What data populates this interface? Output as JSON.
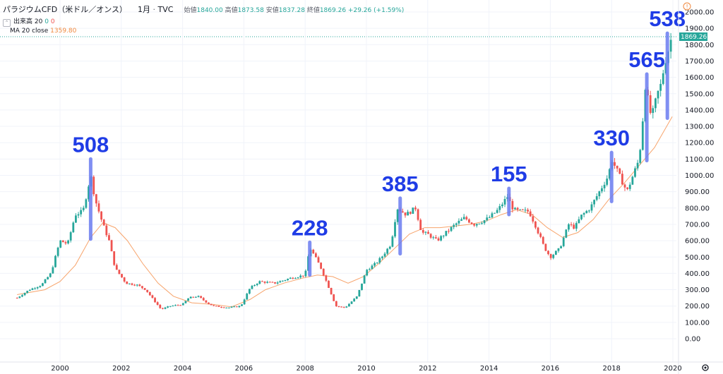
{
  "header": {
    "title": "パラジウムCFD（米ドル／オンス）",
    "interval": "1月",
    "source": "TVC",
    "open_label": "始値",
    "open_value": "1840.00",
    "high_label": "高値",
    "high_value": "1873.58",
    "low_label": "安値",
    "low_value": "1837.28",
    "close_label": "終値",
    "close_value": "1869.26",
    "change": "+29.26 (+1.59%)"
  },
  "volume_legend": {
    "label": "出来高 20",
    "value1": "0",
    "value2": "0"
  },
  "ma_legend": {
    "label": "MA 20 close",
    "value": "1359.80"
  },
  "price_badge": "1869.26",
  "alert_icon": "!",
  "settings_icon": "gear-icon",
  "colors": {
    "up": "#26a69a",
    "down": "#ef5350",
    "ma": "#f7a46c",
    "annotation": "#1f3ce6",
    "highlight": "#6b7cf0"
  },
  "chart_data": {
    "type": "candlestick",
    "title": "パラジウムCFD（米ドル／オンス）",
    "ylim": [
      0,
      2000
    ],
    "yticks": [
      "0.00",
      "100.00",
      "200.00",
      "300.00",
      "400.00",
      "500.00",
      "600.00",
      "700.00",
      "800.00",
      "900.00",
      "1000.00",
      "1100.00",
      "1200.00",
      "1300.00",
      "1400.00",
      "1500.00",
      "1600.00",
      "1700.00",
      "1800.00",
      "1900.00",
      "2000.00"
    ],
    "xticks": [
      {
        "year": 2000,
        "label": "2000"
      },
      {
        "year": 2002,
        "label": "2002"
      },
      {
        "year": 2004,
        "label": "2004"
      },
      {
        "year": 2006,
        "label": "2006"
      },
      {
        "year": 2008,
        "label": "2008"
      },
      {
        "year": 2010,
        "label": "2010"
      },
      {
        "year": 2012,
        "label": "2012"
      },
      {
        "year": 2014,
        "label": "2014"
      },
      {
        "year": 2016,
        "label": "2016"
      },
      {
        "year": 2018,
        "label": "2018"
      },
      {
        "year": 2020,
        "label": "2020"
      }
    ],
    "price_path": [
      [
        1998.6,
        250
      ],
      [
        1999.0,
        300
      ],
      [
        1999.4,
        330
      ],
      [
        1999.7,
        400
      ],
      [
        2000.0,
        600
      ],
      [
        2000.25,
        580
      ],
      [
        2000.5,
        760
      ],
      [
        2000.75,
        780
      ],
      [
        2001.0,
        1000
      ],
      [
        2001.15,
        850
      ],
      [
        2001.4,
        700
      ],
      [
        2001.6,
        600
      ],
      [
        2001.8,
        430
      ],
      [
        2002.0,
        380
      ],
      [
        2002.15,
        340
      ],
      [
        2002.5,
        330
      ],
      [
        2002.8,
        300
      ],
      [
        2003.0,
        250
      ],
      [
        2003.3,
        180
      ],
      [
        2003.6,
        200
      ],
      [
        2004.0,
        210
      ],
      [
        2004.2,
        250
      ],
      [
        2004.5,
        260
      ],
      [
        2004.8,
        220
      ],
      [
        2005.0,
        200
      ],
      [
        2005.5,
        190
      ],
      [
        2005.9,
        200
      ],
      [
        2006.2,
        310
      ],
      [
        2006.5,
        350
      ],
      [
        2007.0,
        340
      ],
      [
        2007.5,
        370
      ],
      [
        2008.0,
        390
      ],
      [
        2008.15,
        560
      ],
      [
        2008.5,
        440
      ],
      [
        2008.8,
        300
      ],
      [
        2009.0,
        200
      ],
      [
        2009.3,
        190
      ],
      [
        2009.7,
        260
      ],
      [
        2010.0,
        420
      ],
      [
        2010.3,
        460
      ],
      [
        2010.5,
        500
      ],
      [
        2010.8,
        580
      ],
      [
        2011.0,
        800
      ],
      [
        2011.3,
        760
      ],
      [
        2011.6,
        800
      ],
      [
        2011.8,
        650
      ],
      [
        2012.0,
        640
      ],
      [
        2012.3,
        600
      ],
      [
        2012.6,
        650
      ],
      [
        2012.9,
        700
      ],
      [
        2013.2,
        740
      ],
      [
        2013.5,
        700
      ],
      [
        2013.8,
        720
      ],
      [
        2014.0,
        740
      ],
      [
        2014.3,
        790
      ],
      [
        2014.6,
        870
      ],
      [
        2014.8,
        790
      ],
      [
        2015.0,
        780
      ],
      [
        2015.3,
        780
      ],
      [
        2015.5,
        700
      ],
      [
        2015.8,
        560
      ],
      [
        2016.0,
        500
      ],
      [
        2016.3,
        550
      ],
      [
        2016.6,
        700
      ],
      [
        2016.8,
        680
      ],
      [
        2017.0,
        750
      ],
      [
        2017.3,
        800
      ],
      [
        2017.6,
        900
      ],
      [
        2017.9,
        1000
      ],
      [
        2018.0,
        1100
      ],
      [
        2018.3,
        980
      ],
      [
        2018.5,
        900
      ],
      [
        2018.7,
        1000
      ],
      [
        2018.9,
        1100
      ],
      [
        2019.0,
        1300
      ],
      [
        2019.1,
        1550
      ],
      [
        2019.3,
        1350
      ],
      [
        2019.5,
        1500
      ],
      [
        2019.6,
        1550
      ],
      [
        2019.75,
        1700
      ],
      [
        2019.9,
        1800
      ],
      [
        2019.98,
        1869
      ]
    ],
    "ma_path": [
      [
        1998.6,
        270
      ],
      [
        1999.5,
        300
      ],
      [
        2000.0,
        350
      ],
      [
        2000.5,
        450
      ],
      [
        2001.0,
        620
      ],
      [
        2001.4,
        710
      ],
      [
        2001.8,
        680
      ],
      [
        2002.2,
        600
      ],
      [
        2002.7,
        460
      ],
      [
        2003.2,
        340
      ],
      [
        2003.7,
        260
      ],
      [
        2004.3,
        220
      ],
      [
        2005.0,
        210
      ],
      [
        2005.6,
        195
      ],
      [
        2006.2,
        240
      ],
      [
        2006.7,
        300
      ],
      [
        2007.3,
        340
      ],
      [
        2007.9,
        370
      ],
      [
        2008.4,
        390
      ],
      [
        2008.9,
        380
      ],
      [
        2009.4,
        340
      ],
      [
        2009.9,
        380
      ],
      [
        2010.4,
        460
      ],
      [
        2010.9,
        550
      ],
      [
        2011.4,
        640
      ],
      [
        2011.9,
        680
      ],
      [
        2012.4,
        680
      ],
      [
        2012.9,
        690
      ],
      [
        2013.4,
        700
      ],
      [
        2013.9,
        720
      ],
      [
        2014.4,
        760
      ],
      [
        2014.9,
        790
      ],
      [
        2015.4,
        760
      ],
      [
        2015.9,
        680
      ],
      [
        2016.4,
        620
      ],
      [
        2016.9,
        650
      ],
      [
        2017.4,
        730
      ],
      [
        2017.9,
        850
      ],
      [
        2018.4,
        950
      ],
      [
        2018.9,
        1060
      ],
      [
        2019.4,
        1170
      ],
      [
        2019.98,
        1360
      ]
    ],
    "annotations": [
      {
        "label": "508",
        "year": 2001.0,
        "low": 610,
        "high": 1100
      },
      {
        "label": "228",
        "year": 2008.15,
        "low": 390,
        "high": 590
      },
      {
        "label": "385",
        "year": 2011.1,
        "low": 520,
        "high": 860
      },
      {
        "label": "155",
        "year": 2014.65,
        "low": 760,
        "high": 920
      },
      {
        "label": "330",
        "year": 2018.0,
        "low": 840,
        "high": 1140
      },
      {
        "label": "565",
        "year": 2019.15,
        "low": 1090,
        "high": 1620
      },
      {
        "label": "538",
        "year": 2019.82,
        "low": 1350,
        "high": 1870
      }
    ]
  }
}
